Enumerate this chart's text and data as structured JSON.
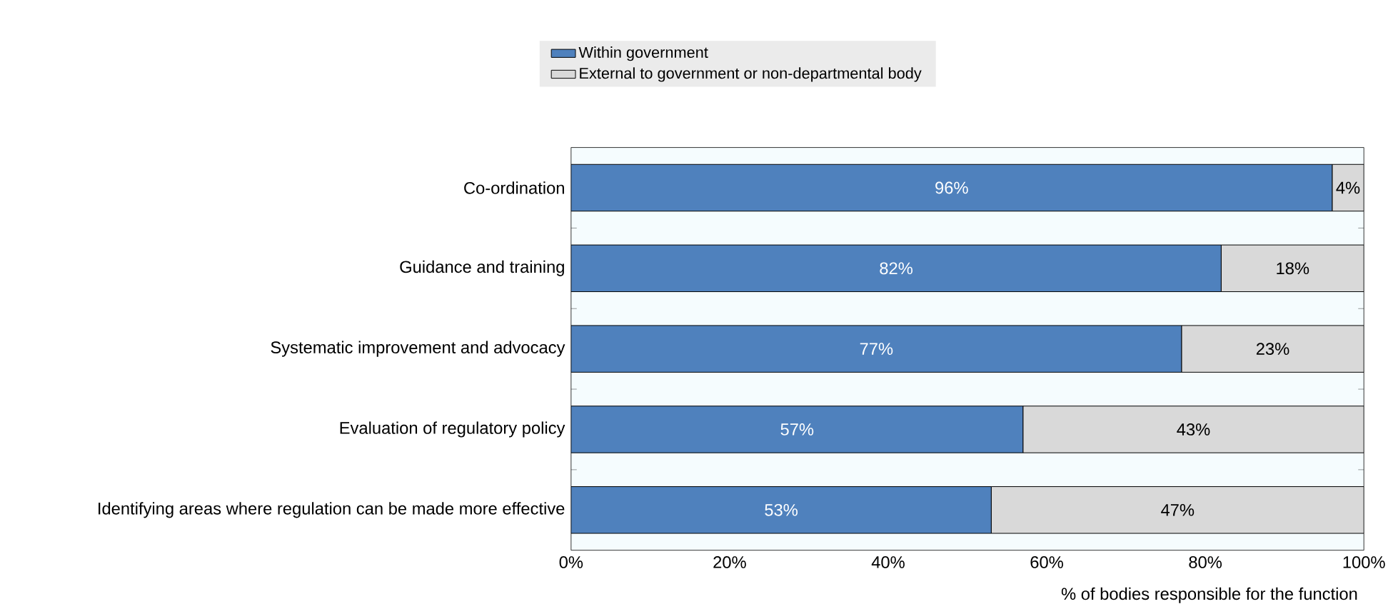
{
  "chart_data": {
    "type": "bar",
    "orientation": "horizontal",
    "stacked": true,
    "legend": "top",
    "categories": [
      "Co-ordination",
      "Guidance and training",
      "Systematic improvement and advocacy",
      "Evaluation of regulatory policy",
      "Identifying areas where regulation can be made more effective"
    ],
    "series": [
      {
        "name": "Within government",
        "color": "#4f81bd",
        "values": [
          96,
          82,
          77,
          57,
          53
        ],
        "value_labels": [
          "96%",
          "82%",
          "77%",
          "57%",
          "53%"
        ]
      },
      {
        "name": "External to government or non-departmental body",
        "color": "#d9d9d9",
        "values": [
          4,
          18,
          23,
          43,
          47
        ],
        "value_labels": [
          "4%",
          "18%",
          "23%",
          "43%",
          "47%"
        ]
      }
    ],
    "xlim": [
      0,
      100
    ],
    "xticks": [
      {
        "value": 0,
        "label": "0%"
      },
      {
        "value": 20,
        "label": "20%"
      },
      {
        "value": 40,
        "label": "40%"
      },
      {
        "value": 60,
        "label": "60%"
      },
      {
        "value": 80,
        "label": "80%"
      },
      {
        "value": 100,
        "label": "100%"
      }
    ],
    "xlabel": "% of bodies responsible for the function"
  }
}
